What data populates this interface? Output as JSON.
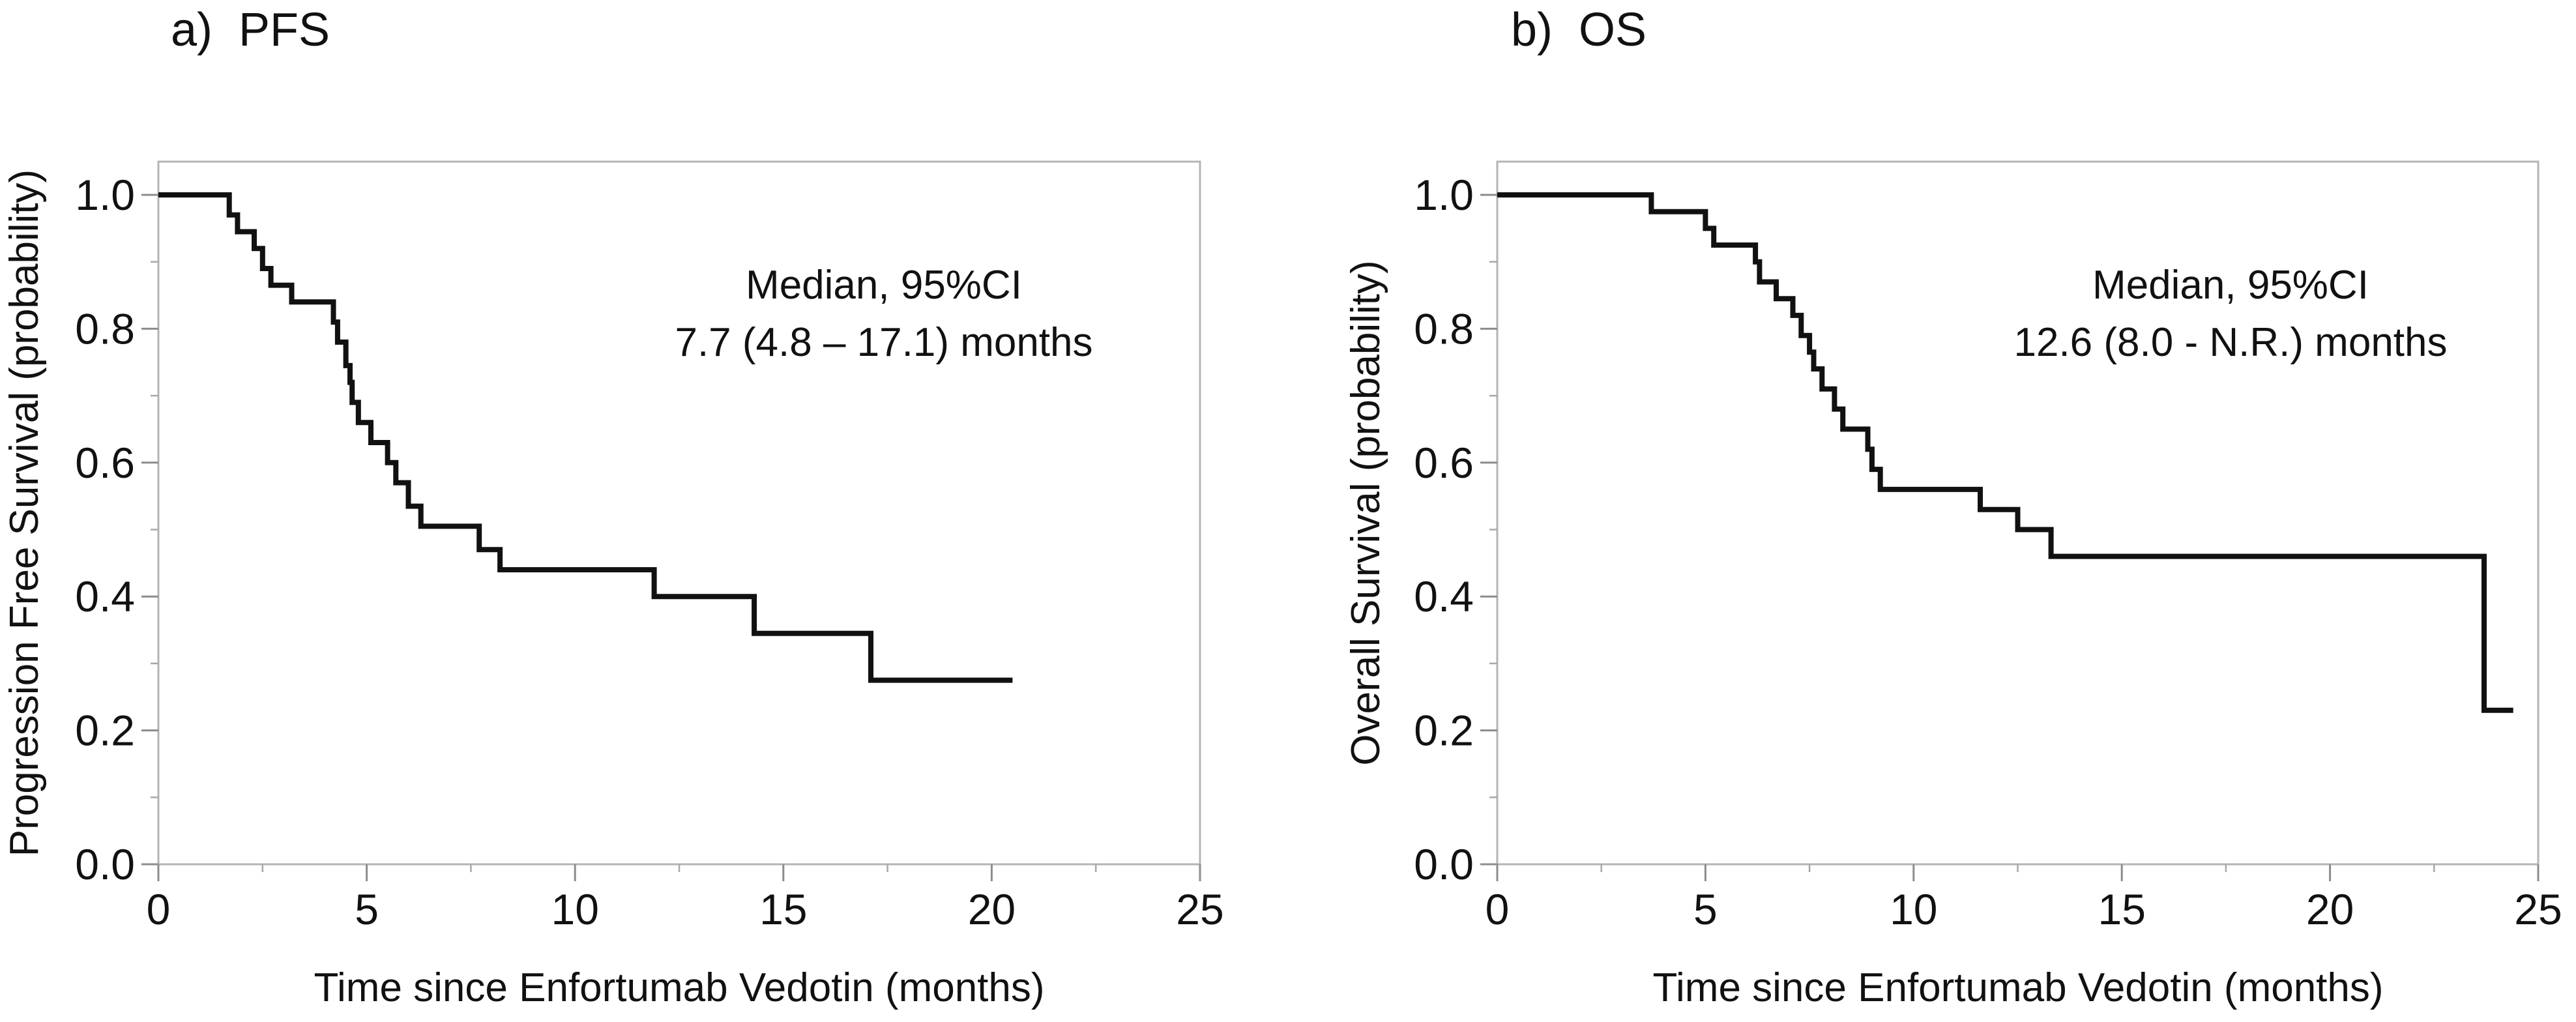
{
  "chart_data": [
    {
      "type": "line",
      "subtype": "kaplan-meier step",
      "panel_title": "a)  PFS",
      "xlabel": "Time since Enfortumab Vedotin (months)",
      "ylabel": "Progression Free Survival (probability)",
      "xlim": [
        0,
        25
      ],
      "ylim": [
        0,
        1
      ],
      "x_ticks": [
        "0",
        "5",
        "10",
        "15",
        "20",
        "25"
      ],
      "y_ticks": [
        "0.0",
        "0.2",
        "0.4",
        "0.6",
        "0.8",
        "1.0"
      ],
      "annotation": [
        "Median, 95%CI",
        "7.7 (4.8 – 17.1) months"
      ],
      "series": [
        {
          "name": "PFS",
          "points": [
            [
              0,
              1.0
            ],
            [
              1.7,
              0.97
            ],
            [
              1.9,
              0.945
            ],
            [
              2.3,
              0.92
            ],
            [
              2.5,
              0.89
            ],
            [
              2.7,
              0.865
            ],
            [
              3.2,
              0.84
            ],
            [
              4.2,
              0.81
            ],
            [
              4.3,
              0.78
            ],
            [
              4.5,
              0.745
            ],
            [
              4.6,
              0.72
            ],
            [
              4.65,
              0.69
            ],
            [
              4.8,
              0.66
            ],
            [
              5.1,
              0.63
            ],
            [
              5.5,
              0.6
            ],
            [
              5.7,
              0.57
            ],
            [
              6.0,
              0.535
            ],
            [
              6.3,
              0.505
            ],
            [
              7.7,
              0.47
            ],
            [
              8.2,
              0.44
            ],
            [
              11.9,
              0.4
            ],
            [
              14.3,
              0.345
            ],
            [
              17.1,
              0.275
            ],
            [
              20.5,
              0.275
            ]
          ]
        }
      ]
    },
    {
      "type": "line",
      "subtype": "kaplan-meier step",
      "panel_title": "b)  OS",
      "xlabel": "Time since Enfortumab Vedotin (months)",
      "ylabel": "Overall Survival (probability)",
      "xlim": [
        0,
        25
      ],
      "ylim": [
        0,
        1
      ],
      "x_ticks": [
        "0",
        "5",
        "10",
        "15",
        "20",
        "25"
      ],
      "y_ticks": [
        "0.0",
        "0.2",
        "0.4",
        "0.6",
        "0.8",
        "1.0"
      ],
      "annotation": [
        "Median, 95%CI",
        "12.6 (8.0 - N.R.) months"
      ],
      "series": [
        {
          "name": "OS",
          "points": [
            [
              0,
              1.0
            ],
            [
              3.7,
              0.975
            ],
            [
              5.0,
              0.95
            ],
            [
              5.2,
              0.925
            ],
            [
              6.2,
              0.9
            ],
            [
              6.3,
              0.87
            ],
            [
              6.7,
              0.845
            ],
            [
              7.1,
              0.82
            ],
            [
              7.3,
              0.79
            ],
            [
              7.5,
              0.765
            ],
            [
              7.6,
              0.74
            ],
            [
              7.8,
              0.71
            ],
            [
              8.1,
              0.68
            ],
            [
              8.3,
              0.65
            ],
            [
              8.9,
              0.62
            ],
            [
              9.0,
              0.59
            ],
            [
              9.2,
              0.56
            ],
            [
              11.6,
              0.53
            ],
            [
              12.5,
              0.5
            ],
            [
              13.3,
              0.46
            ],
            [
              23.7,
              0.23
            ],
            [
              24.4,
              0.23
            ]
          ]
        }
      ]
    }
  ]
}
